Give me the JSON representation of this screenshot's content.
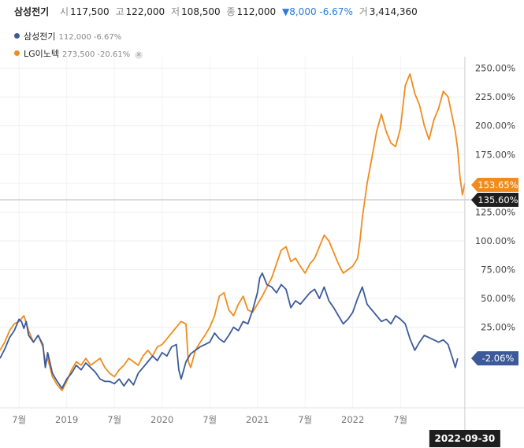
{
  "header": {
    "stock_name": "삼성전기",
    "open_label": "시",
    "open_value": "117,500",
    "high_label": "고",
    "high_value": "122,000",
    "low_label": "저",
    "low_value": "108,500",
    "close_label": "종",
    "close_value": "112,000",
    "change_text": "▼8,000 -6.67%",
    "volume_label": "거",
    "volume_value": "3,414,360"
  },
  "legend": [
    {
      "name": "삼성전기",
      "value": "112,000",
      "change": "-6.67%",
      "color": "#3c5a9a"
    },
    {
      "name": "LG이노텍",
      "value": "273,500",
      "change": "-20.61%",
      "color": "#f08c1e"
    }
  ],
  "colors": {
    "samsung": "#3c5a9a",
    "lg": "#f08c1e",
    "cursor_badge": "#1e1e1e"
  },
  "chart_data": {
    "type": "line",
    "y_unit": "%",
    "ylim": [
      -45,
      260
    ],
    "y_ticks": [
      25,
      50,
      75,
      100,
      125,
      150,
      175,
      200,
      225,
      250
    ],
    "y_tick_labels": [
      "25.00%",
      "50.00%",
      "75.00%",
      "100.00%",
      "125.00%",
      "150.00%",
      "175.00%",
      "200.00%",
      "225.00%",
      "250.00%"
    ],
    "x_ticks": [
      {
        "t": 0.04,
        "label": "7월"
      },
      {
        "t": 0.14,
        "label": "2019"
      },
      {
        "t": 0.24,
        "label": "7월"
      },
      {
        "t": 0.34,
        "label": "2020"
      },
      {
        "t": 0.44,
        "label": "7월"
      },
      {
        "t": 0.54,
        "label": "2021"
      },
      {
        "t": 0.64,
        "label": "7월"
      },
      {
        "t": 0.74,
        "label": "2022"
      },
      {
        "t": 0.84,
        "label": "7월"
      }
    ],
    "grid": true,
    "legend_position": "top-left",
    "series": [
      {
        "name": "삼성전기",
        "color": "#3c5a9a",
        "points": [
          [
            0.0,
            -2
          ],
          [
            0.01,
            6
          ],
          [
            0.02,
            16
          ],
          [
            0.03,
            22
          ],
          [
            0.04,
            32
          ],
          [
            0.045,
            30
          ],
          [
            0.05,
            24
          ],
          [
            0.055,
            30
          ],
          [
            0.06,
            18
          ],
          [
            0.07,
            12
          ],
          [
            0.08,
            18
          ],
          [
            0.09,
            10
          ],
          [
            0.095,
            -10
          ],
          [
            0.1,
            3
          ],
          [
            0.11,
            -15
          ],
          [
            0.12,
            -22
          ],
          [
            0.125,
            -25
          ],
          [
            0.13,
            -28
          ],
          [
            0.14,
            -20
          ],
          [
            0.15,
            -15
          ],
          [
            0.16,
            -8
          ],
          [
            0.17,
            -12
          ],
          [
            0.18,
            -6
          ],
          [
            0.19,
            -10
          ],
          [
            0.2,
            -14
          ],
          [
            0.21,
            -20
          ],
          [
            0.22,
            -22
          ],
          [
            0.23,
            -22
          ],
          [
            0.24,
            -24
          ],
          [
            0.25,
            -20
          ],
          [
            0.26,
            -26
          ],
          [
            0.27,
            -20
          ],
          [
            0.28,
            -25
          ],
          [
            0.29,
            -15
          ],
          [
            0.3,
            -10
          ],
          [
            0.31,
            -5
          ],
          [
            0.32,
            0
          ],
          [
            0.33,
            -4
          ],
          [
            0.34,
            3
          ],
          [
            0.35,
            0
          ],
          [
            0.36,
            8
          ],
          [
            0.37,
            10
          ],
          [
            0.375,
            -12
          ],
          [
            0.38,
            -20
          ],
          [
            0.39,
            -5
          ],
          [
            0.4,
            2
          ],
          [
            0.41,
            5
          ],
          [
            0.42,
            8
          ],
          [
            0.43,
            10
          ],
          [
            0.44,
            12
          ],
          [
            0.45,
            20
          ],
          [
            0.46,
            15
          ],
          [
            0.47,
            12
          ],
          [
            0.48,
            18
          ],
          [
            0.49,
            25
          ],
          [
            0.5,
            22
          ],
          [
            0.51,
            30
          ],
          [
            0.52,
            28
          ],
          [
            0.53,
            40
          ],
          [
            0.54,
            55
          ],
          [
            0.545,
            68
          ],
          [
            0.55,
            72
          ],
          [
            0.56,
            62
          ],
          [
            0.57,
            60
          ],
          [
            0.58,
            55
          ],
          [
            0.59,
            62
          ],
          [
            0.6,
            58
          ],
          [
            0.61,
            42
          ],
          [
            0.62,
            48
          ],
          [
            0.63,
            45
          ],
          [
            0.64,
            50
          ],
          [
            0.65,
            55
          ],
          [
            0.66,
            58
          ],
          [
            0.67,
            50
          ],
          [
            0.68,
            60
          ],
          [
            0.69,
            48
          ],
          [
            0.7,
            42
          ],
          [
            0.71,
            35
          ],
          [
            0.72,
            28
          ],
          [
            0.73,
            32
          ],
          [
            0.74,
            38
          ],
          [
            0.75,
            50
          ],
          [
            0.76,
            60
          ],
          [
            0.77,
            45
          ],
          [
            0.78,
            40
          ],
          [
            0.79,
            35
          ],
          [
            0.8,
            30
          ],
          [
            0.81,
            32
          ],
          [
            0.82,
            28
          ],
          [
            0.83,
            35
          ],
          [
            0.84,
            32
          ],
          [
            0.85,
            28
          ],
          [
            0.86,
            15
          ],
          [
            0.87,
            5
          ],
          [
            0.88,
            12
          ],
          [
            0.89,
            18
          ],
          [
            0.9,
            16
          ],
          [
            0.91,
            14
          ],
          [
            0.92,
            12
          ],
          [
            0.93,
            14
          ],
          [
            0.94,
            10
          ],
          [
            0.95,
            -3
          ],
          [
            0.955,
            -10
          ],
          [
            0.96,
            -2
          ]
        ],
        "last_label": "-2.06%"
      },
      {
        "name": "LG이노텍",
        "color": "#f08c1e",
        "points": [
          [
            0.0,
            5
          ],
          [
            0.01,
            12
          ],
          [
            0.02,
            22
          ],
          [
            0.03,
            28
          ],
          [
            0.04,
            30
          ],
          [
            0.05,
            35
          ],
          [
            0.06,
            22
          ],
          [
            0.07,
            12
          ],
          [
            0.08,
            18
          ],
          [
            0.09,
            8
          ],
          [
            0.095,
            -5
          ],
          [
            0.1,
            -2
          ],
          [
            0.11,
            -18
          ],
          [
            0.12,
            -25
          ],
          [
            0.13,
            -30
          ],
          [
            0.14,
            -22
          ],
          [
            0.15,
            -12
          ],
          [
            0.16,
            -5
          ],
          [
            0.17,
            -8
          ],
          [
            0.18,
            -2
          ],
          [
            0.19,
            -8
          ],
          [
            0.2,
            -5
          ],
          [
            0.21,
            -2
          ],
          [
            0.22,
            -10
          ],
          [
            0.23,
            -15
          ],
          [
            0.24,
            -18
          ],
          [
            0.25,
            -12
          ],
          [
            0.26,
            -8
          ],
          [
            0.27,
            -2
          ],
          [
            0.28,
            -5
          ],
          [
            0.29,
            -8
          ],
          [
            0.3,
            0
          ],
          [
            0.31,
            5
          ],
          [
            0.32,
            0
          ],
          [
            0.33,
            8
          ],
          [
            0.34,
            10
          ],
          [
            0.35,
            15
          ],
          [
            0.36,
            20
          ],
          [
            0.37,
            25
          ],
          [
            0.38,
            30
          ],
          [
            0.39,
            28
          ],
          [
            0.395,
            -5
          ],
          [
            0.4,
            -10
          ],
          [
            0.41,
            5
          ],
          [
            0.42,
            12
          ],
          [
            0.43,
            18
          ],
          [
            0.44,
            25
          ],
          [
            0.45,
            35
          ],
          [
            0.46,
            52
          ],
          [
            0.47,
            55
          ],
          [
            0.48,
            40
          ],
          [
            0.49,
            35
          ],
          [
            0.5,
            45
          ],
          [
            0.51,
            52
          ],
          [
            0.52,
            40
          ],
          [
            0.53,
            38
          ],
          [
            0.54,
            45
          ],
          [
            0.55,
            52
          ],
          [
            0.56,
            60
          ],
          [
            0.57,
            68
          ],
          [
            0.58,
            80
          ],
          [
            0.59,
            92
          ],
          [
            0.6,
            95
          ],
          [
            0.61,
            82
          ],
          [
            0.62,
            85
          ],
          [
            0.63,
            78
          ],
          [
            0.64,
            72
          ],
          [
            0.65,
            80
          ],
          [
            0.66,
            85
          ],
          [
            0.67,
            95
          ],
          [
            0.68,
            105
          ],
          [
            0.69,
            100
          ],
          [
            0.7,
            90
          ],
          [
            0.71,
            80
          ],
          [
            0.72,
            72
          ],
          [
            0.73,
            75
          ],
          [
            0.74,
            78
          ],
          [
            0.75,
            85
          ],
          [
            0.755,
            100
          ],
          [
            0.76,
            120
          ],
          [
            0.77,
            150
          ],
          [
            0.78,
            172
          ],
          [
            0.79,
            195
          ],
          [
            0.8,
            210
          ],
          [
            0.81,
            195
          ],
          [
            0.82,
            185
          ],
          [
            0.83,
            182
          ],
          [
            0.84,
            198
          ],
          [
            0.85,
            235
          ],
          [
            0.86,
            245
          ],
          [
            0.87,
            228
          ],
          [
            0.88,
            218
          ],
          [
            0.89,
            200
          ],
          [
            0.9,
            188
          ],
          [
            0.91,
            205
          ],
          [
            0.92,
            215
          ],
          [
            0.93,
            230
          ],
          [
            0.94,
            225
          ],
          [
            0.95,
            205
          ],
          [
            0.955,
            195
          ],
          [
            0.96,
            180
          ],
          [
            0.965,
            155
          ],
          [
            0.97,
            140
          ],
          [
            0.975,
            150
          ]
        ],
        "last_label": "153.65%"
      }
    ],
    "cursor": {
      "y": 135.6,
      "y_label": "135.60%",
      "x": 0.975,
      "x_label": "2022-09-30"
    }
  }
}
